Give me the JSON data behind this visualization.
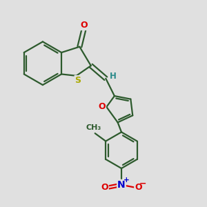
{
  "bg_color": "#e0e0e0",
  "bond_color": "#2d5a2d",
  "bond_width": 1.6,
  "atom_colors": {
    "O": "#dd0000",
    "S": "#aaaa00",
    "N": "#0000cc",
    "H": "#2a8a8a",
    "C": "#2d5a2d"
  },
  "font_size": 8.5
}
